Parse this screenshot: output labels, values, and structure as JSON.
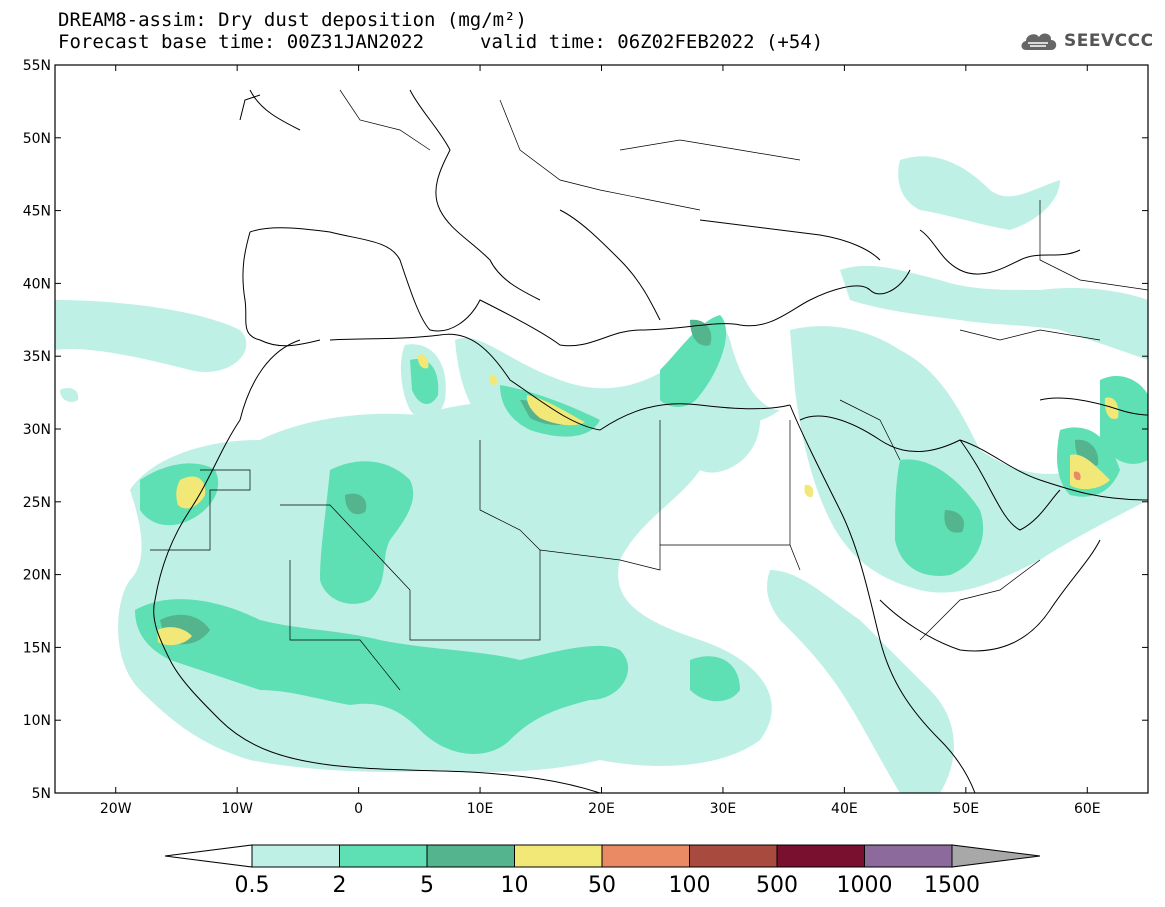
{
  "header": {
    "title_line1": "DREAM8-assim: Dry dust deposition (mg/m²)",
    "title_line2a": "Forecast base time: 00Z31JAN2022",
    "title_line2b": "valid time: 06Z02FEB2022 (+54)",
    "logo_text": "SEEVCCC",
    "logo_icon": "cloud-icon"
  },
  "map": {
    "lat_labels": [
      "55N",
      "50N",
      "45N",
      "40N",
      "35N",
      "30N",
      "25N",
      "20N",
      "15N",
      "10N",
      "5N"
    ],
    "lon_labels": [
      "20W",
      "10W",
      "0",
      "10E",
      "20E",
      "30E",
      "40E",
      "50E",
      "60E"
    ],
    "lat_range": [
      5,
      55
    ],
    "lon_range": [
      -25,
      65
    ],
    "land_color": "#ffffff",
    "border_color": "#000000"
  },
  "colorbar": {
    "labels": [
      "0.5",
      "2",
      "5",
      "10",
      "50",
      "100",
      "500",
      "1000",
      "1500"
    ],
    "colors": [
      "#bff0e6",
      "#5ee0b4",
      "#54b48e",
      "#f2e878",
      "#e98a64",
      "#a84a3e",
      "#7a1030",
      "#8c6a9c",
      "#a8a8a8"
    ],
    "under_color": "#ffffff"
  }
}
